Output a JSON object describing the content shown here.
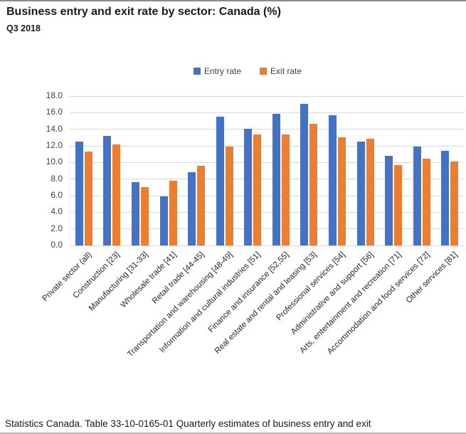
{
  "page": {
    "title": "Business entry and exit rate by sector: Canada (%)",
    "subtitle": "Q3 2018",
    "caption": "Statistics Canada. Table 33-10-0165-01 Quarterly estimates of business entry and exit"
  },
  "legend": {
    "entry_label": "Entry rate",
    "exit_label": "Exit rate"
  },
  "colors": {
    "entry": "#4472C4",
    "exit": "#ED7D31",
    "gridline": "#D9D9D9",
    "axis_text": "#404040"
  },
  "chart_data": {
    "type": "bar",
    "title": "Business entry and exit rate by sector: Canada (%)",
    "subtitle": "Q3 2018",
    "categories": [
      "Private sector (all)",
      "Construction [23]",
      "Manufacturing [31-33]",
      "Wholesale trade [41]",
      "Retail trade [44-45]",
      "Transportation and warehousing [48-49]",
      "Information and cultural industries [51]",
      "Finance and insurance [52,55]",
      "Real estate and rental and leasing [53]",
      "Professional services [54]",
      "Administrative and support [56]",
      "Arts, entertainment and recreation [71]",
      "Accommodation and food services [72]",
      "Other services [81]"
    ],
    "series": [
      {
        "name": "Entry rate",
        "color": "#4472C4",
        "values": [
          12.5,
          13.2,
          7.6,
          5.9,
          8.8,
          15.5,
          14.1,
          15.9,
          17.1,
          15.7,
          12.5,
          10.8,
          11.9,
          11.4
        ]
      },
      {
        "name": "Exit rate",
        "color": "#ED7D31",
        "values": [
          11.3,
          12.2,
          7.0,
          7.8,
          9.6,
          11.9,
          13.4,
          13.4,
          14.7,
          13.0,
          12.9,
          9.7,
          10.5,
          10.1
        ]
      }
    ],
    "ylabel": "",
    "xlabel": "",
    "ylim": [
      0,
      18
    ],
    "ytick_step": 2,
    "ytick_labels": [
      "0.0",
      "2.0",
      "4.0",
      "6.0",
      "8.0",
      "10.0",
      "12.0",
      "14.0",
      "16.0",
      "18.0"
    ],
    "grid": true,
    "legend_position": "top-center"
  }
}
